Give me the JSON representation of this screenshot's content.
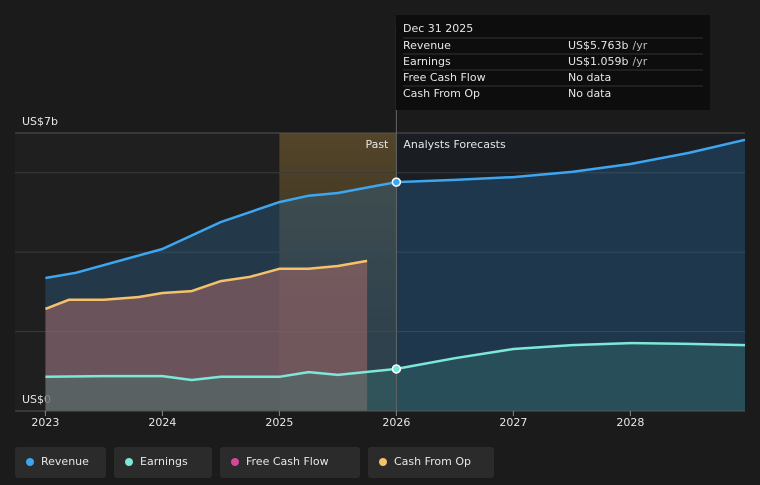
{
  "chart_data": {
    "type": "line",
    "xlim": [
      2022.74,
      2028.98
    ],
    "xticks": [
      2023,
      2024,
      2025,
      2026,
      2027,
      2028
    ],
    "ylim": [
      0,
      7
    ],
    "yticks": [
      {
        "value": 0,
        "label": "US$0"
      },
      {
        "value": 7,
        "label": "US$7b"
      }
    ],
    "ygrid": [
      2,
      4,
      6,
      7
    ],
    "grid": true,
    "divider_x": 2026,
    "highlight": [
      2025,
      2026
    ],
    "past_label": "Past",
    "forecast_label": "Analysts Forecasts",
    "series": [
      {
        "name": "Revenue",
        "color": "#3ea6f0",
        "area": true,
        "x": [
          2023,
          2023.26,
          2024,
          2024.5,
          2025,
          2025.25,
          2025.5,
          2026,
          2026.5,
          2027,
          2027.5,
          2028,
          2028.5,
          2028.98
        ],
        "values": [
          3.35,
          3.48,
          4.08,
          4.76,
          5.26,
          5.42,
          5.49,
          5.763,
          5.82,
          5.89,
          6.02,
          6.22,
          6.5,
          6.83
        ]
      },
      {
        "name": "Earnings",
        "color": "#7de8d9",
        "area": true,
        "x": [
          2023,
          2023.5,
          2024,
          2024.25,
          2024.5,
          2025,
          2025.25,
          2025.5,
          2026,
          2026.5,
          2027,
          2027.5,
          2028,
          2028.5,
          2028.98
        ],
        "values": [
          0.86,
          0.88,
          0.88,
          0.78,
          0.86,
          0.86,
          0.98,
          0.91,
          1.059,
          1.33,
          1.56,
          1.66,
          1.71,
          1.69,
          1.66
        ]
      },
      {
        "name": "Free Cash Flow",
        "color": "#d6479a",
        "area": false,
        "x": [],
        "values": []
      },
      {
        "name": "Cash From Op",
        "color": "#f5c26b",
        "area": true,
        "x": [
          2023,
          2023.2,
          2023.5,
          2023.8,
          2024,
          2024.25,
          2024.5,
          2024.75,
          2025,
          2025.25,
          2025.5,
          2025.75
        ],
        "values": [
          2.57,
          2.8,
          2.8,
          2.87,
          2.97,
          3.02,
          3.27,
          3.38,
          3.58,
          3.58,
          3.65,
          3.78
        ]
      }
    ],
    "tooltip": {
      "date": "Dec 31 2025",
      "rows": [
        {
          "label": "Revenue",
          "value": "US$5.763b",
          "unit": "/yr"
        },
        {
          "label": "Earnings",
          "value": "US$1.059b",
          "unit": "/yr"
        },
        {
          "label": "Free Cash Flow",
          "value": "No data"
        },
        {
          "label": "Cash From Op",
          "value": "No data"
        }
      ]
    }
  }
}
